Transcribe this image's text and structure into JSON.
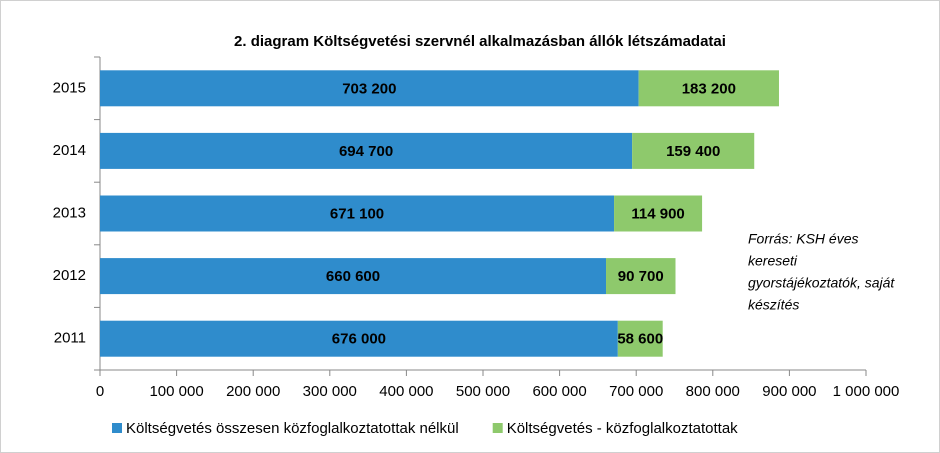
{
  "chart_data": {
    "type": "stacked_barh",
    "title": "2. diagram Költségvetési szervnél alkalmazásban állók létszámadatai",
    "categories": [
      "2011",
      "2012",
      "2013",
      "2014",
      "2015"
    ],
    "series": [
      {
        "name": "Költségvetés összesen közfoglalkoztatottak nélkül",
        "color": "#2f8ccc",
        "values": [
          676000,
          660600,
          671100,
          694700,
          703200
        ],
        "value_labels": [
          "676 000",
          "660 600",
          "671 100",
          "694 700",
          "703 200"
        ]
      },
      {
        "name": "Költségvetés - közfoglalkoztatottak",
        "color": "#8ec96c",
        "values": [
          58600,
          90700,
          114900,
          159400,
          183200
        ],
        "value_labels": [
          "58 600",
          "90 700",
          "114 900",
          "159 400",
          "183 200"
        ]
      }
    ],
    "xlim": [
      0,
      1000000
    ],
    "xticks": [
      0,
      {
        "value": 100000,
        "label": "100 000"
      },
      {
        "value": 200000,
        "label": "200 000"
      },
      {
        "value": 300000,
        "label": "300 000"
      },
      {
        "value": 400000,
        "label": "400 000"
      },
      {
        "value": 500000,
        "label": "500 000"
      },
      {
        "value": 600000,
        "label": "600 000"
      },
      {
        "value": 700000,
        "label": "700 000"
      },
      {
        "value": 800000,
        "label": "800 000"
      },
      {
        "value": 900000,
        "label": "900 000"
      },
      {
        "value": 1000000,
        "label": "1 000 000"
      }
    ],
    "annotation": [
      "Forrás: KSH éves",
      "kereseti",
      "gyorstájékoztatók, saját",
      "készítés"
    ],
    "legend": "bottom"
  }
}
